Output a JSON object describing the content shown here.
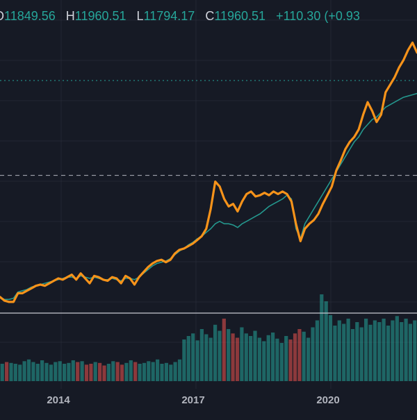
{
  "legend": {
    "open_key": "O",
    "open_value": "11849.56",
    "high_key": "H",
    "high_value": "11960.51",
    "low_key": "L",
    "low_value": "11794.17",
    "close_key": "C",
    "close_value": "11960.51",
    "change": "+110.30 (+0.93"
  },
  "colors": {
    "background": "#161a25",
    "grid": "#232734",
    "up": "#26a69a",
    "down": "#ef5350",
    "comparison_line": "#f7931a",
    "legend_value": "#26a69a"
  },
  "chart_data": {
    "type": "line",
    "x_ticks": [
      "2014",
      "2017",
      "2020"
    ],
    "x": [
      2012.9,
      2013.0,
      2013.1,
      2013.2,
      2013.3,
      2013.4,
      2013.5,
      2013.6,
      2013.7,
      2013.8,
      2013.9,
      2014.0,
      2014.1,
      2014.2,
      2014.3,
      2014.4,
      2014.5,
      2014.6,
      2014.7,
      2014.8,
      2014.9,
      2015.0,
      2015.1,
      2015.2,
      2015.3,
      2015.4,
      2015.5,
      2015.6,
      2015.7,
      2015.8,
      2015.9,
      2016.0,
      2016.1,
      2016.2,
      2016.3,
      2016.4,
      2016.5,
      2016.6,
      2016.7,
      2016.8,
      2016.9,
      2017.0,
      2017.1,
      2017.2,
      2017.3,
      2017.4,
      2017.5,
      2017.6,
      2017.7,
      2017.8,
      2017.9,
      2018.0,
      2018.1,
      2018.2,
      2018.3,
      2018.4,
      2018.5,
      2018.6,
      2018.7,
      2018.8,
      2018.9,
      2019.0,
      2019.1,
      2019.2,
      2019.3,
      2019.4,
      2019.5,
      2019.6,
      2019.7,
      2019.8,
      2019.9,
      2020.0,
      2020.1,
      2020.2,
      2020.3,
      2020.4,
      2020.5,
      2020.6,
      2020.7,
      2020.8,
      2020.9,
      2021.0,
      2021.1,
      2021.2,
      2021.3,
      2021.4,
      2021.5,
      2021.6,
      2021.7,
      2021.8,
      2021.9,
      2022.0,
      2022.1,
      2022.2
    ],
    "series": [
      {
        "color": "#f7931a",
        "values": [
          33,
          30,
          29,
          29,
          36,
          36,
          38,
          40,
          42,
          43,
          42,
          44,
          46,
          48,
          47,
          49,
          51,
          47,
          52,
          48,
          44,
          50,
          49,
          47,
          46,
          49,
          48,
          44,
          50,
          48,
          43,
          49,
          53,
          57,
          60,
          62,
          63,
          61,
          63,
          68,
          71,
          72,
          74,
          76,
          79,
          82,
          88,
          104,
          126,
          122,
          112,
          106,
          108,
          102,
          110,
          116,
          118,
          114,
          115,
          117,
          115,
          118,
          116,
          118,
          116,
          110,
          92,
          78,
          88,
          92,
          95,
          100,
          108,
          115,
          122,
          135,
          143,
          152,
          158,
          162,
          168,
          180,
          190,
          183,
          174,
          180,
          198,
          204,
          210,
          218,
          224,
          232,
          238,
          230
        ]
      },
      {
        "color": "#26a69a",
        "values": [
          33,
          31,
          31,
          32,
          37,
          38,
          39,
          41,
          42,
          43,
          44,
          45,
          46,
          47,
          48,
          49,
          49,
          48,
          50,
          49,
          48,
          49,
          48,
          47,
          47,
          48,
          47,
          46,
          48,
          48,
          47,
          49,
          52,
          55,
          58,
          60,
          61,
          62,
          64,
          67,
          70,
          72,
          75,
          77,
          80,
          82,
          85,
          88,
          92,
          94,
          92,
          92,
          91,
          89,
          92,
          94,
          96,
          98,
          100,
          103,
          106,
          108,
          110,
          112,
          115,
          112,
          88,
          80,
          92,
          98,
          104,
          110,
          116,
          122,
          128,
          134,
          140,
          146,
          152,
          158,
          162,
          168,
          172,
          176,
          178,
          182,
          186,
          188,
          190,
          192,
          194,
          195,
          196,
          197
        ]
      }
    ],
    "volume": [
      20,
      22,
      21,
      20,
      19,
      23,
      25,
      22,
      20,
      24,
      21,
      19,
      22,
      23,
      20,
      21,
      24,
      22,
      23,
      19,
      20,
      22,
      21,
      18,
      20,
      23,
      22,
      19,
      21,
      24,
      22,
      20,
      21,
      23,
      22,
      25,
      20,
      21,
      19,
      22,
      25,
      48,
      52,
      55,
      47,
      60,
      54,
      50,
      65,
      58,
      72,
      60,
      55,
      50,
      62,
      55,
      52,
      58,
      50,
      46,
      53,
      56,
      49,
      44,
      52,
      48,
      55,
      60,
      57,
      50,
      62,
      70,
      100,
      92,
      76,
      64,
      70,
      66,
      72,
      60,
      68,
      62,
      72,
      65,
      70,
      68,
      72,
      64,
      70,
      75,
      68,
      72,
      66,
      70
    ],
    "reference_line": 131,
    "ylim": [
      20,
      250
    ]
  }
}
